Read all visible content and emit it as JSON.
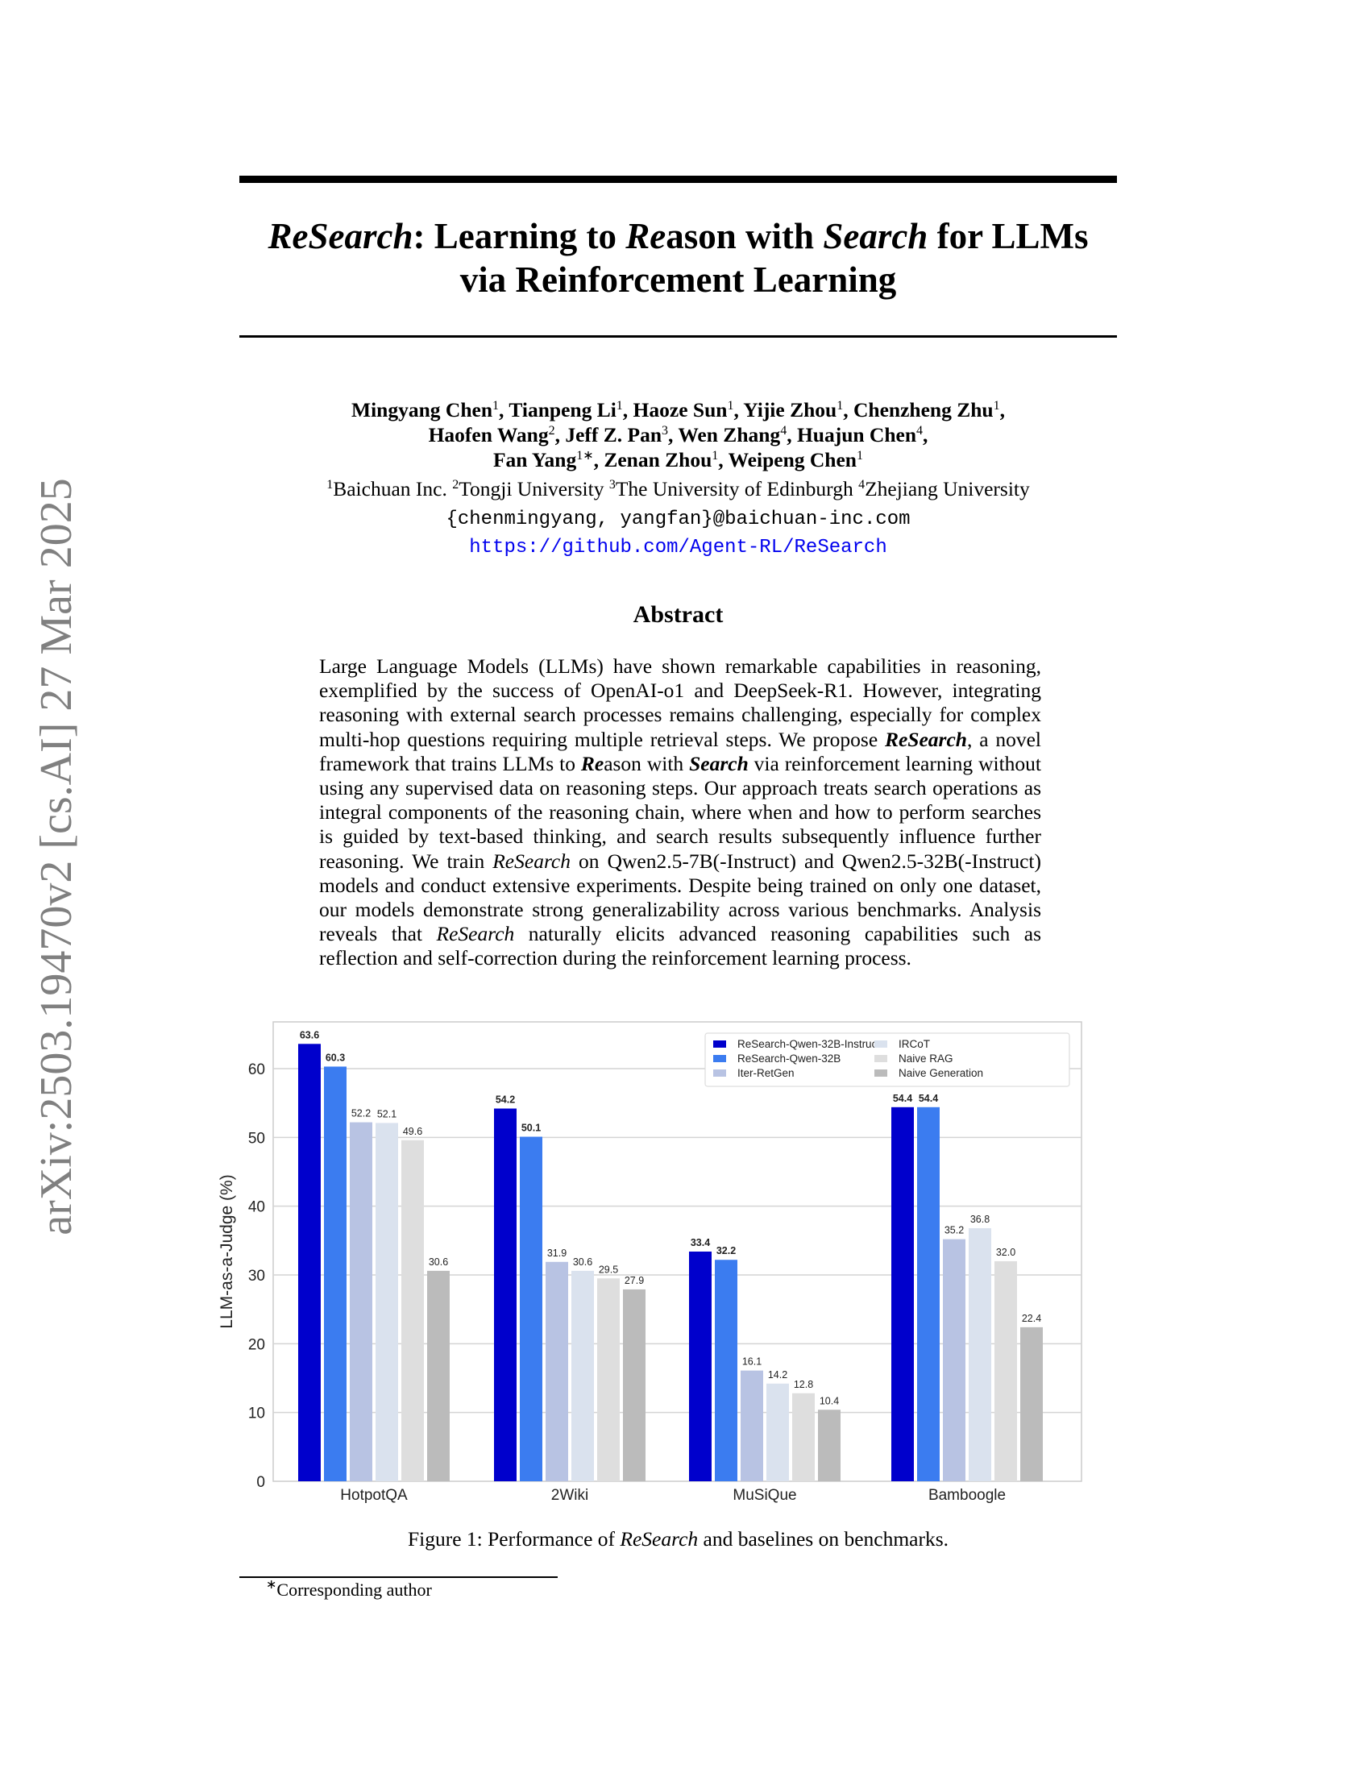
{
  "sidebar_stamp": "arXiv:2503.19470v2  [cs.AI]  27 Mar 2025",
  "title": {
    "line1_parts": [
      "ReSearch",
      ": Learning to ",
      "Re",
      "ason with ",
      "Search",
      " for LLMs"
    ],
    "line2": "via Reinforcement Learning"
  },
  "authors": [
    {
      "name": "Mingyang Chen",
      "sup": "1"
    },
    {
      "name": "Tianpeng Li",
      "sup": "1"
    },
    {
      "name": "Haoze Sun",
      "sup": "1"
    },
    {
      "name": "Yijie Zhou",
      "sup": "1"
    },
    {
      "name": "Chenzheng Zhu",
      "sup": "1"
    },
    {
      "name": "Haofen Wang",
      "sup": "2"
    },
    {
      "name": "Jeff Z. Pan",
      "sup": "3"
    },
    {
      "name": "Wen Zhang",
      "sup": "4"
    },
    {
      "name": "Huajun Chen",
      "sup": "4"
    },
    {
      "name": "Fan Yang",
      "sup": "1∗"
    },
    {
      "name": "Zenan Zhou",
      "sup": "1"
    },
    {
      "name": "Weipeng Chen",
      "sup": "1"
    }
  ],
  "affiliations": [
    {
      "sup": "1",
      "name": "Baichuan Inc."
    },
    {
      "sup": "2",
      "name": "Tongji University"
    },
    {
      "sup": "3",
      "name": "The University of Edinburgh"
    },
    {
      "sup": "4",
      "name": "Zhejiang University"
    }
  ],
  "email": "{chenmingyang, yangfan}@baichuan-inc.com",
  "url": "https://github.com/Agent-RL/ReSearch",
  "abstract_heading": "Abstract",
  "abstract_parts": [
    {
      "t": "Large Language Models (LLMs) have shown remarkable capabilities in reasoning, exemplified by the success of OpenAI-o1 and DeepSeek-R1. However, integrating reasoning with external search processes remains challenging, especially for complex multi-hop questions requiring multiple retrieval steps. We propose ",
      "s": "n"
    },
    {
      "t": "ReSearch",
      "s": "bi"
    },
    {
      "t": ", a novel framework that trains LLMs to ",
      "s": "n"
    },
    {
      "t": "Re",
      "s": "bi"
    },
    {
      "t": "ason with ",
      "s": "n"
    },
    {
      "t": "Search",
      "s": "bi"
    },
    {
      "t": " via reinforcement learning without using any supervised data on reasoning steps. Our approach treats search operations as integral components of the reasoning chain, where when and how to perform searches is guided by text-based thinking, and search results subsequently influence further reasoning. We train ",
      "s": "n"
    },
    {
      "t": "ReSearch",
      "s": "i"
    },
    {
      "t": " on Qwen2.5-7B(-Instruct) and Qwen2.5-32B(-Instruct) models and conduct extensive experiments. Despite being trained on only one dataset, our models demonstrate strong generalizability across various benchmarks.  Analysis reveals that ",
      "s": "n"
    },
    {
      "t": "ReSearch",
      "s": "i"
    },
    {
      "t": " naturally elicits advanced reasoning capabilities such as reflection and self-correction during the reinforcement learning process.",
      "s": "n"
    }
  ],
  "caption_parts": [
    "Figure 1: Performance of ",
    "ReSearch",
    " and baselines on benchmarks."
  ],
  "footnote": {
    "mark": "∗",
    "text": "Corresponding author"
  },
  "chart_data": {
    "type": "bar",
    "title": "",
    "xlabel": "",
    "ylabel": "LLM-as-a-Judge (%)",
    "ylim": [
      0,
      66.8
    ],
    "yticks": [
      0,
      10,
      20,
      30,
      40,
      50,
      60
    ],
    "grid": true,
    "legend_placement": "top-right",
    "categories": [
      "HotpotQA",
      "2Wiki",
      "MuSiQue",
      "Bamboogle"
    ],
    "series": [
      {
        "name": "ReSearch-Qwen-32B-Instruct",
        "color": "#0000cc",
        "bold_labels": true,
        "values": [
          63.6,
          54.2,
          33.4,
          54.4
        ]
      },
      {
        "name": "ReSearch-Qwen-32B",
        "color": "#3b7cf0",
        "bold_labels": true,
        "values": [
          60.3,
          50.1,
          32.2,
          54.4
        ]
      },
      {
        "name": "Iter-RetGen",
        "color": "#b8c3e3",
        "bold_labels": false,
        "values": [
          52.2,
          31.9,
          16.1,
          35.2
        ]
      },
      {
        "name": "IRCoT",
        "color": "#dae2ee",
        "bold_labels": false,
        "values": [
          52.1,
          30.6,
          14.2,
          36.8
        ]
      },
      {
        "name": "Naive RAG",
        "color": "#dedede",
        "bold_labels": false,
        "values": [
          49.6,
          29.5,
          12.8,
          32.0
        ]
      },
      {
        "name": "Naive Generation",
        "color": "#bbbbbb",
        "bold_labels": false,
        "values": [
          30.6,
          27.9,
          10.4,
          22.4
        ]
      }
    ]
  }
}
